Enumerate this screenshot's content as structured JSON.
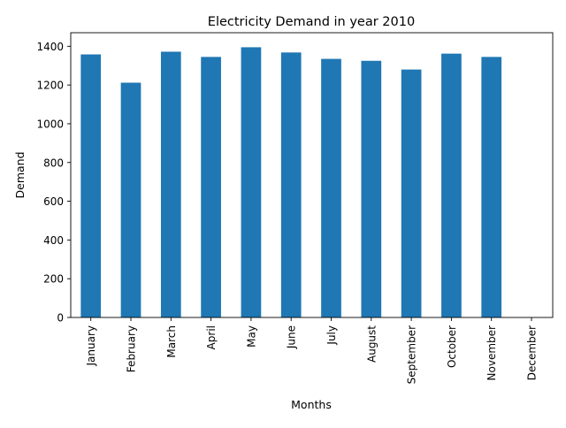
{
  "chart_data": {
    "type": "bar",
    "title": "Electricity Demand in year 2010",
    "xlabel": "Months",
    "ylabel": "Demand",
    "categories": [
      "January",
      "February",
      "March",
      "April",
      "May",
      "June",
      "July",
      "August",
      "September",
      "October",
      "November",
      "December"
    ],
    "values": [
      1358,
      1212,
      1372,
      1345,
      1395,
      1368,
      1335,
      1325,
      1280,
      1362,
      1345,
      null
    ],
    "ylim": [
      0,
      1470
    ],
    "yticks": [
      0,
      200,
      400,
      600,
      800,
      1000,
      1200,
      1400
    ],
    "bar_color": "#1f77b4",
    "grid": false,
    "legend": "none"
  }
}
